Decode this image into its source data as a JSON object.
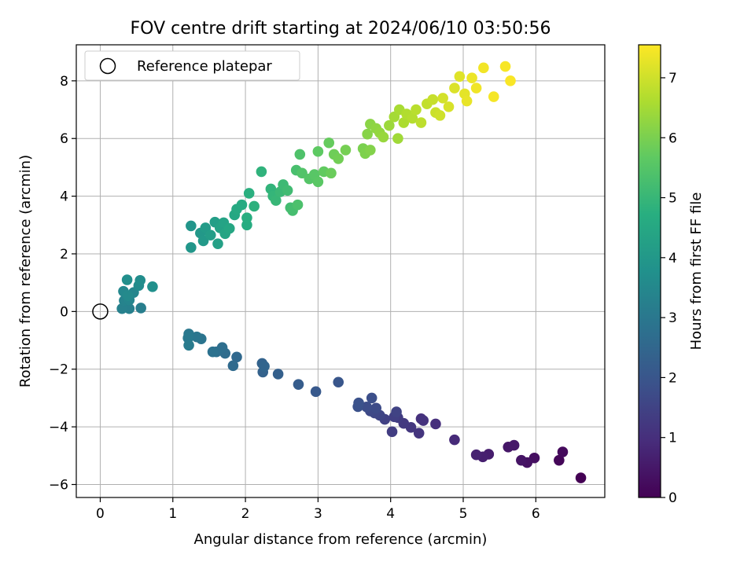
{
  "chart_data": {
    "type": "scatter",
    "title": "FOV centre drift starting at 2024/06/10 03:50:56",
    "xlabel": "Angular distance from reference (arcmin)",
    "ylabel": "Rotation from reference (arcmin)",
    "xlim": [
      -0.33,
      6.95
    ],
    "ylim": [
      -6.45,
      9.25
    ],
    "xticks": [
      0,
      1,
      2,
      3,
      4,
      5,
      6
    ],
    "yticks": [
      -6,
      -4,
      -2,
      0,
      2,
      4,
      6,
      8
    ],
    "grid": true,
    "legend": {
      "location": "upper-left",
      "entries": [
        {
          "label": "Reference platepar",
          "marker": "open-circle"
        }
      ]
    },
    "reference_point": {
      "x": 0,
      "y": 0
    },
    "colorbar": {
      "label": "Hours from first FF file",
      "colormap": "viridis",
      "range": [
        0,
        7.55
      ],
      "ticks": [
        0,
        1,
        2,
        3,
        4,
        5,
        6,
        7
      ]
    },
    "series": [
      {
        "color_by": "hours",
        "points": [
          {
            "x": 6.62,
            "y": -5.77,
            "c": 0.0
          },
          {
            "x": 6.32,
            "y": -5.16,
            "c": 0.1
          },
          {
            "x": 6.37,
            "y": -4.87,
            "c": 0.2
          },
          {
            "x": 5.98,
            "y": -5.08,
            "c": 0.3
          },
          {
            "x": 5.88,
            "y": -5.24,
            "c": 0.35
          },
          {
            "x": 5.8,
            "y": -5.16,
            "c": 0.4
          },
          {
            "x": 5.62,
            "y": -4.7,
            "c": 0.45
          },
          {
            "x": 5.7,
            "y": -4.64,
            "c": 0.5
          },
          {
            "x": 5.35,
            "y": -4.95,
            "c": 0.6
          },
          {
            "x": 5.27,
            "y": -5.04,
            "c": 0.65
          },
          {
            "x": 5.18,
            "y": -4.97,
            "c": 0.7
          },
          {
            "x": 4.88,
            "y": -4.45,
            "c": 0.9
          },
          {
            "x": 4.62,
            "y": -3.9,
            "c": 1.0
          },
          {
            "x": 4.42,
            "y": -3.72,
            "c": 1.05
          },
          {
            "x": 4.45,
            "y": -3.78,
            "c": 1.1
          },
          {
            "x": 4.39,
            "y": -4.22,
            "c": 1.15
          },
          {
            "x": 4.28,
            "y": -4.02,
            "c": 1.2
          },
          {
            "x": 4.18,
            "y": -3.88,
            "c": 1.25
          },
          {
            "x": 4.1,
            "y": -3.68,
            "c": 1.3
          },
          {
            "x": 4.02,
            "y": -4.17,
            "c": 1.35
          },
          {
            "x": 4.05,
            "y": -3.65,
            "c": 1.4
          },
          {
            "x": 3.92,
            "y": -3.74,
            "c": 1.45
          },
          {
            "x": 4.08,
            "y": -3.48,
            "c": 1.5
          },
          {
            "x": 3.85,
            "y": -3.6,
            "c": 1.55
          },
          {
            "x": 3.78,
            "y": -3.52,
            "c": 1.6
          },
          {
            "x": 3.72,
            "y": -3.45,
            "c": 1.65
          },
          {
            "x": 3.8,
            "y": -3.35,
            "c": 1.7
          },
          {
            "x": 3.67,
            "y": -3.31,
            "c": 1.75
          },
          {
            "x": 3.74,
            "y": -3.0,
            "c": 1.8
          },
          {
            "x": 3.55,
            "y": -3.3,
            "c": 1.85
          },
          {
            "x": 3.56,
            "y": -3.17,
            "c": 1.9
          },
          {
            "x": 3.28,
            "y": -2.45,
            "c": 2.0
          },
          {
            "x": 2.97,
            "y": -2.78,
            "c": 2.1
          },
          {
            "x": 2.73,
            "y": -2.53,
            "c": 2.2
          },
          {
            "x": 2.45,
            "y": -2.17,
            "c": 2.3
          },
          {
            "x": 2.24,
            "y": -2.1,
            "c": 2.35
          },
          {
            "x": 2.23,
            "y": -1.8,
            "c": 2.4
          },
          {
            "x": 2.26,
            "y": -1.9,
            "c": 2.45
          },
          {
            "x": 1.88,
            "y": -1.58,
            "c": 2.55
          },
          {
            "x": 1.83,
            "y": -1.88,
            "c": 2.6
          },
          {
            "x": 1.72,
            "y": -1.45,
            "c": 2.65
          },
          {
            "x": 1.68,
            "y": -1.25,
            "c": 2.7
          },
          {
            "x": 1.6,
            "y": -1.4,
            "c": 2.75
          },
          {
            "x": 1.55,
            "y": -1.4,
            "c": 2.8
          },
          {
            "x": 1.39,
            "y": -0.95,
            "c": 2.9
          },
          {
            "x": 1.33,
            "y": -0.88,
            "c": 2.95
          },
          {
            "x": 1.22,
            "y": -0.78,
            "c": 3.0
          },
          {
            "x": 1.21,
            "y": -0.92,
            "c": 3.05
          },
          {
            "x": 1.22,
            "y": -1.17,
            "c": 3.1
          },
          {
            "x": 0.56,
            "y": 0.12,
            "c": 3.2
          },
          {
            "x": 0.4,
            "y": 0.1,
            "c": 3.25
          },
          {
            "x": 0.3,
            "y": 0.1,
            "c": 3.3
          },
          {
            "x": 0.33,
            "y": 0.38,
            "c": 3.35
          },
          {
            "x": 0.4,
            "y": 0.4,
            "c": 3.4
          },
          {
            "x": 0.46,
            "y": 0.66,
            "c": 3.45
          },
          {
            "x": 0.32,
            "y": 0.7,
            "c": 3.5
          },
          {
            "x": 0.38,
            "y": 0.55,
            "c": 3.55
          },
          {
            "x": 0.53,
            "y": 0.9,
            "c": 3.6
          },
          {
            "x": 0.55,
            "y": 1.08,
            "c": 3.65
          },
          {
            "x": 0.37,
            "y": 1.1,
            "c": 3.7
          },
          {
            "x": 0.72,
            "y": 0.86,
            "c": 3.75
          },
          {
            "x": 1.25,
            "y": 2.97,
            "c": 3.9
          },
          {
            "x": 1.25,
            "y": 2.22,
            "c": 3.95
          },
          {
            "x": 1.38,
            "y": 2.72,
            "c": 4.0
          },
          {
            "x": 1.42,
            "y": 2.45,
            "c": 4.05
          },
          {
            "x": 1.45,
            "y": 2.9,
            "c": 4.1
          },
          {
            "x": 1.52,
            "y": 2.65,
            "c": 4.15
          },
          {
            "x": 1.58,
            "y": 3.1,
            "c": 4.2
          },
          {
            "x": 1.62,
            "y": 2.35,
            "c": 4.25
          },
          {
            "x": 1.65,
            "y": 2.9,
            "c": 4.3
          },
          {
            "x": 1.7,
            "y": 3.08,
            "c": 4.35
          },
          {
            "x": 1.72,
            "y": 2.7,
            "c": 4.4
          },
          {
            "x": 1.78,
            "y": 2.88,
            "c": 4.45
          },
          {
            "x": 1.85,
            "y": 3.35,
            "c": 4.5
          },
          {
            "x": 1.88,
            "y": 3.55,
            "c": 4.55
          },
          {
            "x": 1.95,
            "y": 3.7,
            "c": 4.6
          },
          {
            "x": 2.02,
            "y": 3.0,
            "c": 4.65
          },
          {
            "x": 2.02,
            "y": 3.25,
            "c": 4.7
          },
          {
            "x": 2.05,
            "y": 4.1,
            "c": 4.75
          },
          {
            "x": 2.12,
            "y": 3.65,
            "c": 4.8
          },
          {
            "x": 2.22,
            "y": 4.85,
            "c": 4.85
          },
          {
            "x": 2.35,
            "y": 4.25,
            "c": 4.9
          },
          {
            "x": 2.38,
            "y": 4.0,
            "c": 4.95
          },
          {
            "x": 2.42,
            "y": 3.85,
            "c": 5.0
          },
          {
            "x": 2.48,
            "y": 4.15,
            "c": 5.05
          },
          {
            "x": 2.52,
            "y": 4.4,
            "c": 5.1
          },
          {
            "x": 2.58,
            "y": 4.2,
            "c": 5.15
          },
          {
            "x": 2.62,
            "y": 3.6,
            "c": 5.2
          },
          {
            "x": 2.65,
            "y": 3.5,
            "c": 5.25
          },
          {
            "x": 2.7,
            "y": 4.9,
            "c": 5.3
          },
          {
            "x": 2.72,
            "y": 3.7,
            "c": 5.35
          },
          {
            "x": 2.75,
            "y": 5.45,
            "c": 5.4
          },
          {
            "x": 2.78,
            "y": 4.8,
            "c": 5.45
          },
          {
            "x": 2.88,
            "y": 4.6,
            "c": 5.5
          },
          {
            "x": 2.95,
            "y": 4.75,
            "c": 5.55
          },
          {
            "x": 3.0,
            "y": 4.5,
            "c": 5.6
          },
          {
            "x": 3.0,
            "y": 5.55,
            "c": 5.65
          },
          {
            "x": 3.08,
            "y": 4.85,
            "c": 5.7
          },
          {
            "x": 3.15,
            "y": 5.85,
            "c": 5.75
          },
          {
            "x": 3.18,
            "y": 4.8,
            "c": 5.8
          },
          {
            "x": 3.22,
            "y": 5.45,
            "c": 5.85
          },
          {
            "x": 3.28,
            "y": 5.3,
            "c": 5.9
          },
          {
            "x": 3.38,
            "y": 5.6,
            "c": 5.95
          },
          {
            "x": 3.62,
            "y": 5.65,
            "c": 6.0
          },
          {
            "x": 3.65,
            "y": 5.48,
            "c": 6.05
          },
          {
            "x": 3.72,
            "y": 5.6,
            "c": 6.1
          },
          {
            "x": 3.68,
            "y": 6.15,
            "c": 6.15
          },
          {
            "x": 3.72,
            "y": 6.5,
            "c": 6.2
          },
          {
            "x": 3.8,
            "y": 6.35,
            "c": 6.25
          },
          {
            "x": 3.85,
            "y": 6.2,
            "c": 6.3
          },
          {
            "x": 3.9,
            "y": 6.05,
            "c": 6.35
          },
          {
            "x": 3.98,
            "y": 6.45,
            "c": 6.4
          },
          {
            "x": 4.1,
            "y": 6.0,
            "c": 6.45
          },
          {
            "x": 4.05,
            "y": 6.75,
            "c": 6.5
          },
          {
            "x": 4.12,
            "y": 7.0,
            "c": 6.55
          },
          {
            "x": 4.18,
            "y": 6.55,
            "c": 6.6
          },
          {
            "x": 4.22,
            "y": 6.85,
            "c": 6.65
          },
          {
            "x": 4.3,
            "y": 6.7,
            "c": 6.7
          },
          {
            "x": 4.35,
            "y": 7.0,
            "c": 6.75
          },
          {
            "x": 4.42,
            "y": 6.55,
            "c": 6.8
          },
          {
            "x": 4.5,
            "y": 7.2,
            "c": 6.85
          },
          {
            "x": 4.58,
            "y": 7.35,
            "c": 6.9
          },
          {
            "x": 4.62,
            "y": 6.9,
            "c": 6.95
          },
          {
            "x": 4.68,
            "y": 6.8,
            "c": 7.0
          },
          {
            "x": 4.72,
            "y": 7.4,
            "c": 7.05
          },
          {
            "x": 4.8,
            "y": 7.1,
            "c": 7.1
          },
          {
            "x": 4.88,
            "y": 7.75,
            "c": 7.15
          },
          {
            "x": 4.95,
            "y": 8.15,
            "c": 7.2
          },
          {
            "x": 5.02,
            "y": 7.55,
            "c": 7.25
          },
          {
            "x": 5.05,
            "y": 7.3,
            "c": 7.3
          },
          {
            "x": 5.12,
            "y": 8.1,
            "c": 7.35
          },
          {
            "x": 5.18,
            "y": 7.75,
            "c": 7.4
          },
          {
            "x": 5.28,
            "y": 8.45,
            "c": 7.42
          },
          {
            "x": 5.42,
            "y": 7.45,
            "c": 7.45
          },
          {
            "x": 5.58,
            "y": 8.5,
            "c": 7.48
          },
          {
            "x": 5.65,
            "y": 8.0,
            "c": 7.5
          }
        ]
      }
    ]
  }
}
